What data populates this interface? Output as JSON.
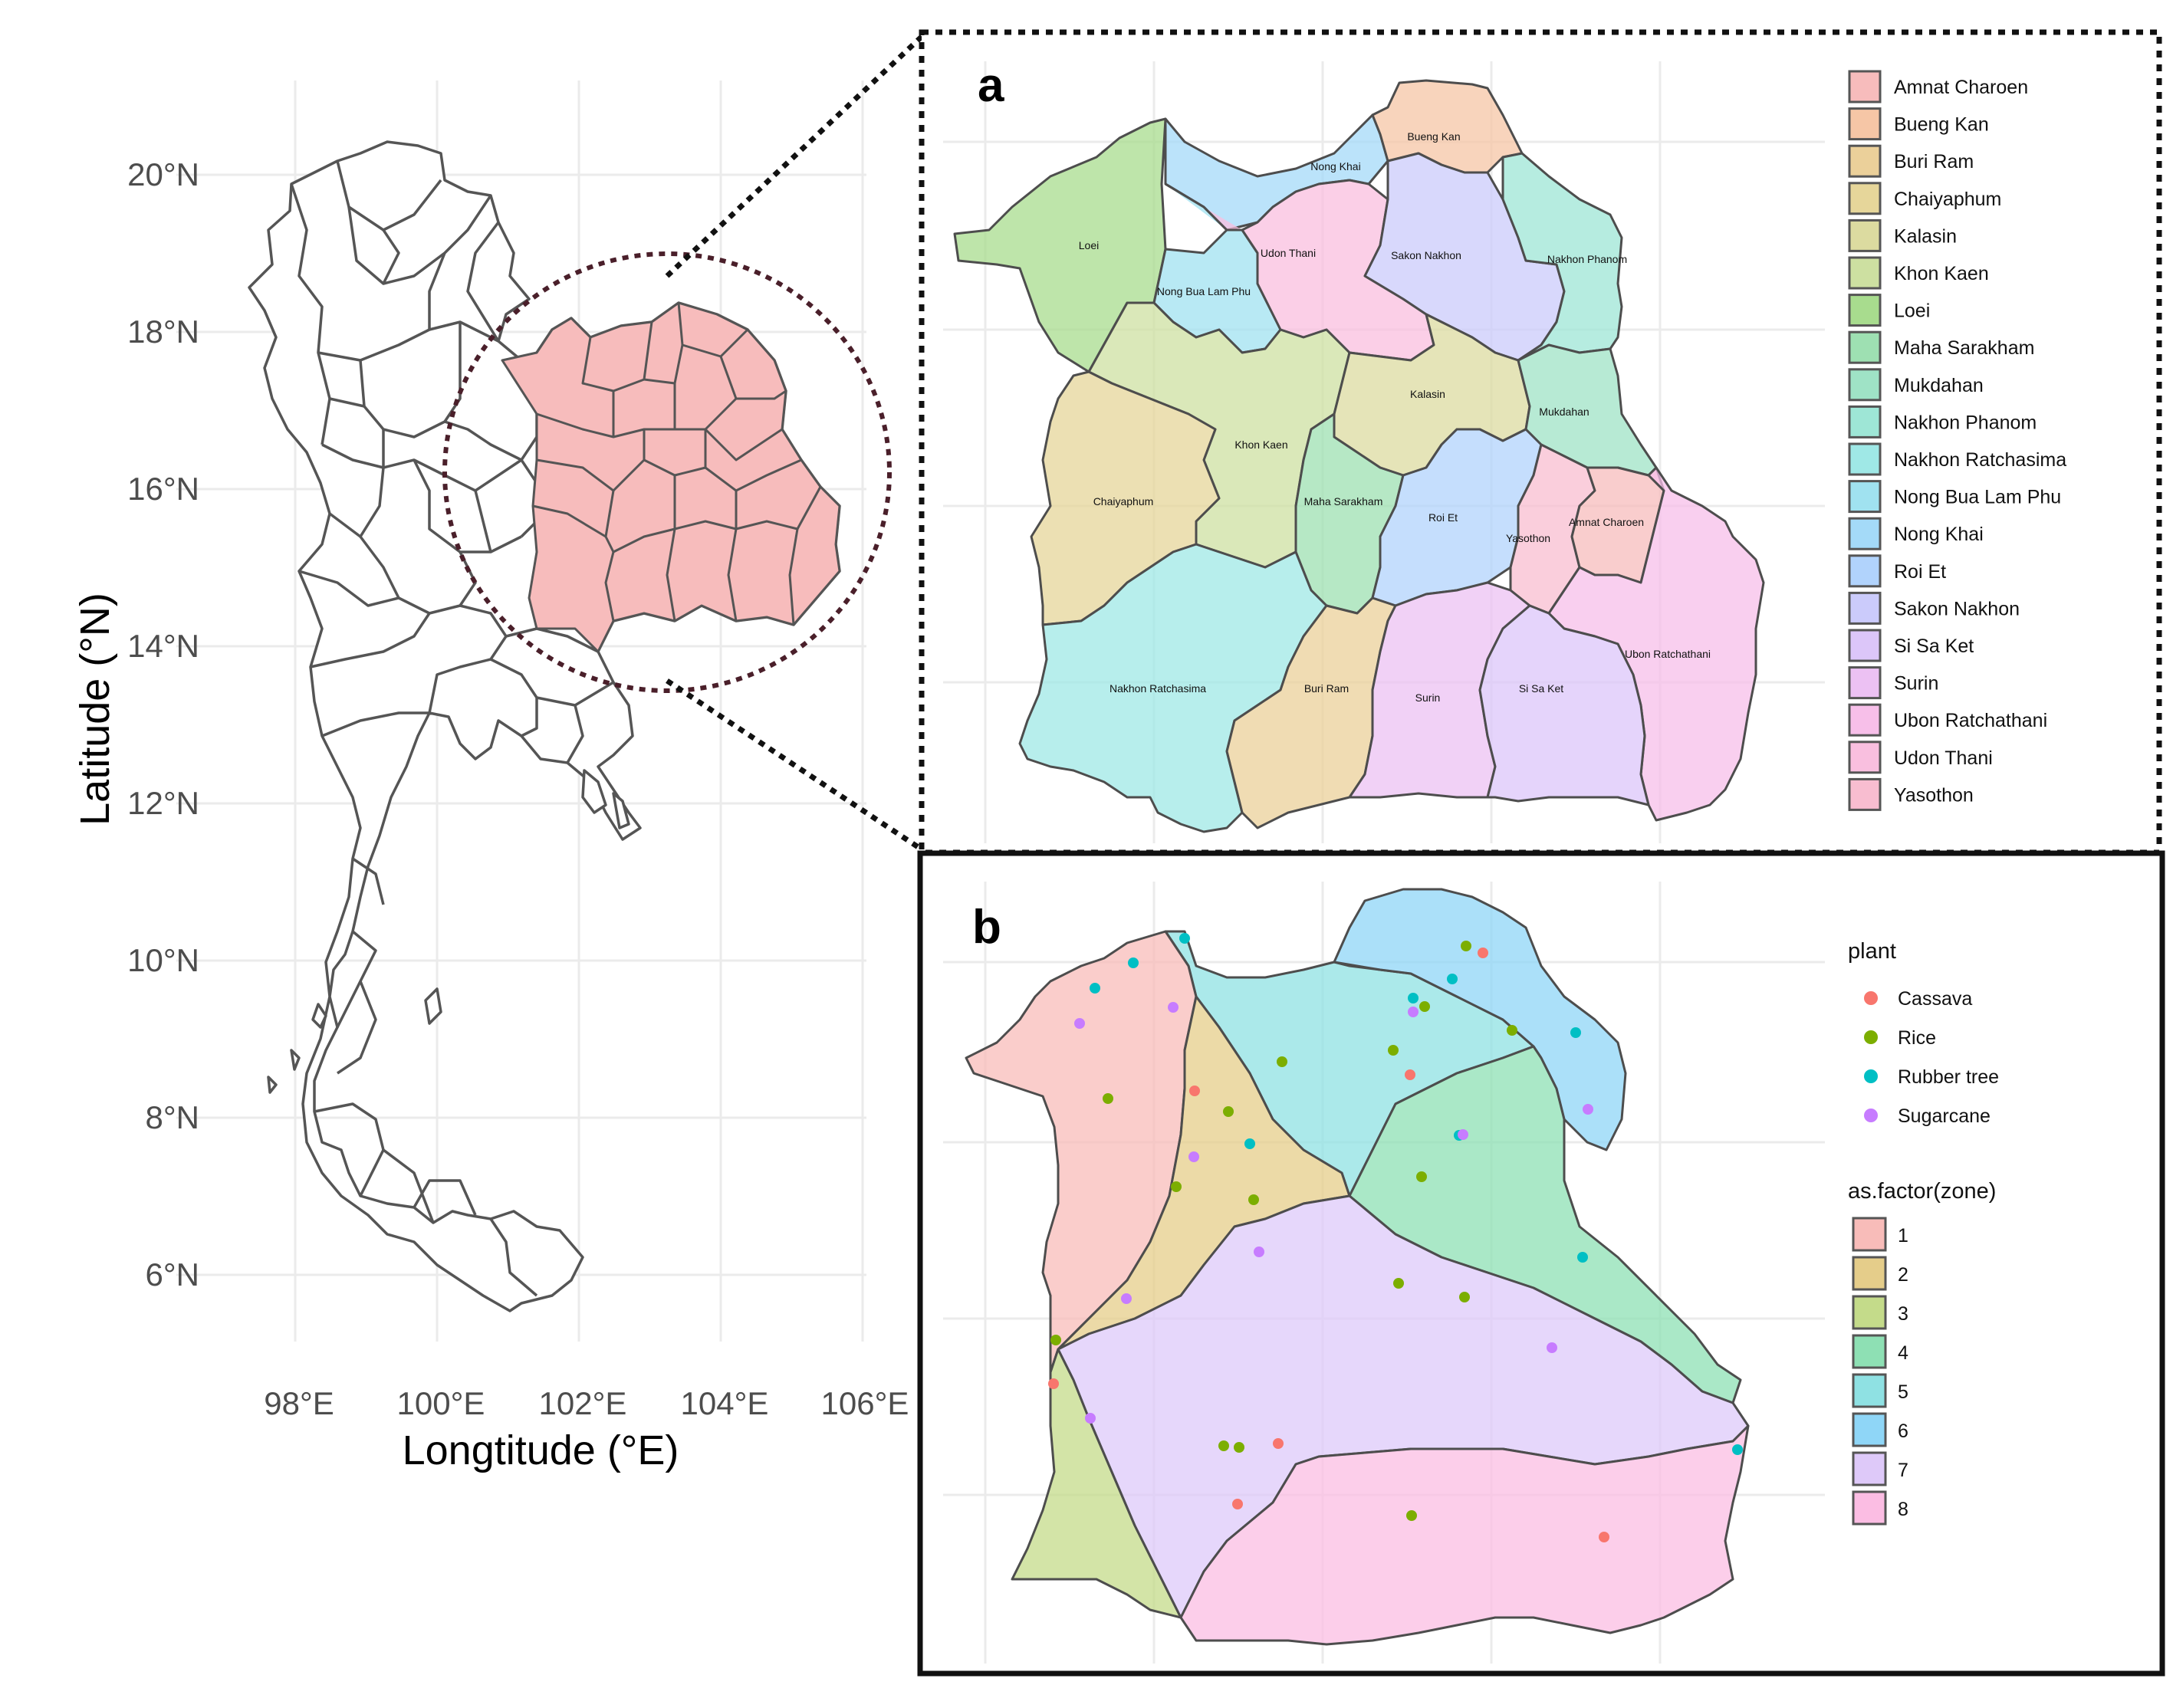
{
  "overview_map": {
    "y_axis_title": "Latitude (°N)",
    "x_axis_title": "Longtitude (°E)",
    "lat_ticks": [
      "20°N",
      "18°N",
      "16°N",
      "14°N",
      "12°N",
      "10°N",
      "8°N",
      "6°N"
    ],
    "lon_ticks": [
      "98°E",
      "100°E",
      "102°E",
      "104°E",
      "106°E"
    ],
    "highlight_color": "#f7bcbc",
    "highlight_ring_color": "#4a1f2a"
  },
  "panel_a": {
    "letter": "a",
    "province_labels": [
      "Loei",
      "Nong Khai",
      "Bueng Kan",
      "Udon Thani",
      "Sakon Nakhon",
      "Nakhon Phanom",
      "Nong Bua Lam Phu",
      "Khon Kaen",
      "Kalasin",
      "Mukdahan",
      "Chaiyaphum",
      "Maha Sarakham",
      "Roi Et",
      "Yasothon",
      "Amnat Charoen",
      "Ubon Ratchathani",
      "Nakhon Ratchasima",
      "Buri Ram",
      "Surin",
      "Si Sa Ket"
    ],
    "legend": [
      {
        "label": "Amnat Charoen",
        "color": "#f7bcbc"
      },
      {
        "label": "Bueng Kan",
        "color": "#f6c6a6"
      },
      {
        "label": "Buri Ram",
        "color": "#ebd09a"
      },
      {
        "label": "Chaiyaphum",
        "color": "#e6d69a"
      },
      {
        "label": "Kalasin",
        "color": "#dcdba0"
      },
      {
        "label": "Khon Kaen",
        "color": "#cde0a1"
      },
      {
        "label": "Loei",
        "color": "#a8dc8e"
      },
      {
        "label": "Maha Sarakham",
        "color": "#9ee0b2"
      },
      {
        "label": "Mukdahan",
        "color": "#9fe3c6"
      },
      {
        "label": "Nakhon Phanom",
        "color": "#9ee6d6"
      },
      {
        "label": "Nakhon Ratchasima",
        "color": "#9fe8e6"
      },
      {
        "label": "Nong Bua Lam Phu",
        "color": "#a0e2f0"
      },
      {
        "label": "Nong Khai",
        "color": "#a4daf8"
      },
      {
        "label": "Roi Et",
        "color": "#b1d3fc"
      },
      {
        "label": "Sakon Nakhon",
        "color": "#cbcbfb"
      },
      {
        "label": "Si Sa Ket",
        "color": "#dcc6f9"
      },
      {
        "label": "Surin",
        "color": "#ecc1f3"
      },
      {
        "label": "Ubon Ratchathani",
        "color": "#f7bfe9"
      },
      {
        "label": "Udon Thani",
        "color": "#f9bfdf"
      },
      {
        "label": "Yasothon",
        "color": "#f8bdd0"
      }
    ]
  },
  "panel_b": {
    "letter": "b",
    "plant_legend_title": "plant",
    "plants": [
      {
        "label": "Cassava",
        "color": "#f8766d"
      },
      {
        "label": "Rice",
        "color": "#7cae00"
      },
      {
        "label": "Rubber tree",
        "color": "#00bfc4"
      },
      {
        "label": "Sugarcane",
        "color": "#c77cff"
      }
    ],
    "zone_legend_title": "as.factor(zone)",
    "zones": [
      {
        "label": "1",
        "color": "#f8bcb9"
      },
      {
        "label": "2",
        "color": "#e5cd8a"
      },
      {
        "label": "3",
        "color": "#c4db8a"
      },
      {
        "label": "4",
        "color": "#8ee0b4"
      },
      {
        "label": "5",
        "color": "#8fe1e3"
      },
      {
        "label": "6",
        "color": "#8fd6f7"
      },
      {
        "label": "7",
        "color": "#dec9f9"
      },
      {
        "label": "8",
        "color": "#fbbde3"
      }
    ]
  }
}
